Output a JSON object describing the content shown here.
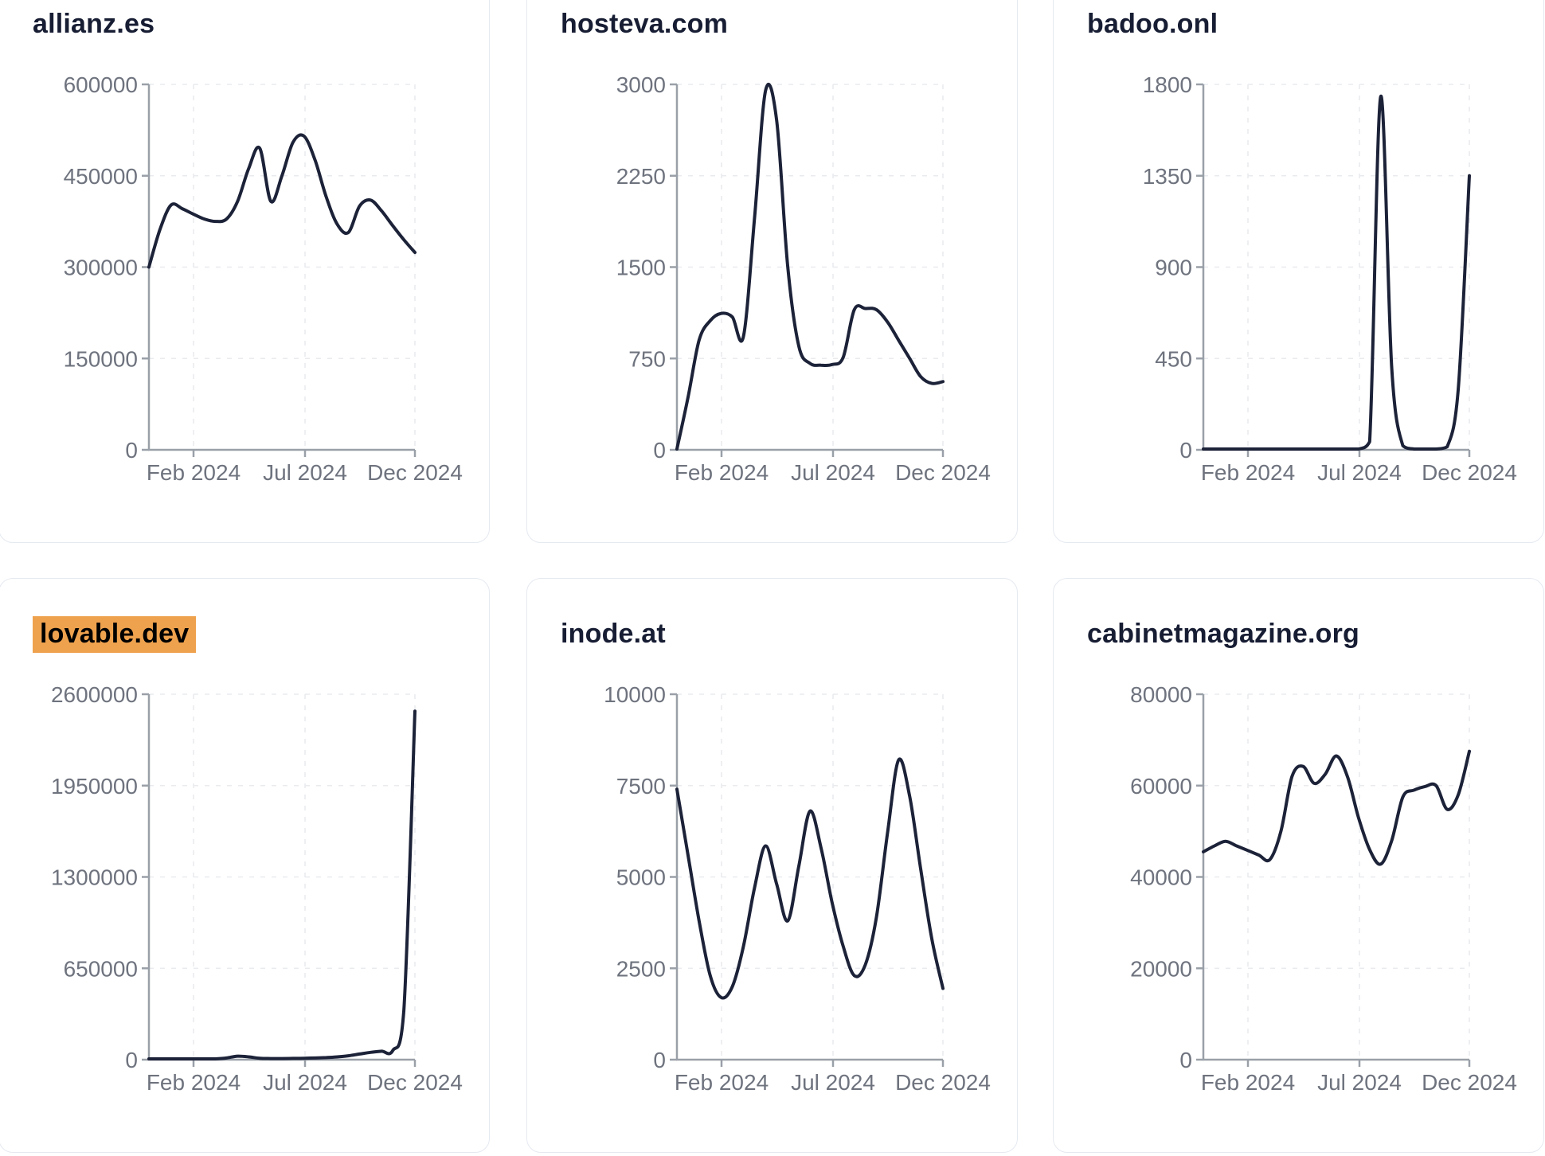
{
  "page": {
    "background": "#ffffff",
    "card_background": "#ffffff",
    "card_border": "#e5e9f0"
  },
  "colors": {
    "line": "#1c2238",
    "axis": "#9aa0a8",
    "grid": "#e9ebef",
    "tick_text": "#6e737e",
    "title_text": "#171d33",
    "highlight": "#efa24e",
    "highlight_text": "#000000"
  },
  "chart_data": [
    {
      "type": "line",
      "title": "allianz.es",
      "highlighted": false,
      "x_ticks": [
        "Feb 2024",
        "Jul 2024",
        "Dec 2024"
      ],
      "y_ticks": [
        0,
        150000,
        300000,
        450000,
        600000
      ],
      "y_max": 600000,
      "x_range": [
        "Dec 2023",
        "Dec 2024"
      ],
      "values": [
        300000,
        362000,
        402000,
        396000,
        387000,
        379000,
        375000,
        379000,
        408000,
        462000,
        495000,
        408000,
        450000,
        505000,
        515000,
        475000,
        415000,
        370000,
        357000,
        400000,
        410000,
        392000,
        368000,
        345000,
        324000
      ]
    },
    {
      "type": "line",
      "title": "hosteva.com",
      "highlighted": false,
      "x_ticks": [
        "Feb 2024",
        "Jul 2024",
        "Dec 2024"
      ],
      "y_ticks": [
        0,
        750,
        1500,
        2250,
        3000
      ],
      "y_max": 3000,
      "x_range": [
        "Dec 2023",
        "Dec 2024"
      ],
      "values": [
        0,
        430,
        900,
        1060,
        1120,
        1090,
        930,
        1900,
        2950,
        2700,
        1500,
        850,
        710,
        695,
        700,
        760,
        1150,
        1160,
        1150,
        1050,
        900,
        750,
        600,
        545,
        560
      ]
    },
    {
      "type": "line",
      "title": "badoo.onl",
      "highlighted": false,
      "x_ticks": [
        "Feb 2024",
        "Jul 2024",
        "Dec 2024"
      ],
      "y_ticks": [
        0,
        450,
        900,
        1350,
        1800
      ],
      "y_max": 1800,
      "x_range": [
        "Dec 2023",
        "Dec 2024"
      ],
      "values": [
        3,
        3,
        3,
        3,
        3,
        3,
        3,
        3,
        3,
        3,
        3,
        3,
        3,
        3,
        3,
        40,
        1740,
        400,
        20,
        3,
        3,
        3,
        15,
        300,
        1350
      ]
    },
    {
      "type": "line",
      "title": "lovable.dev",
      "highlighted": true,
      "x_ticks": [
        "Feb 2024",
        "Jul 2024",
        "Dec 2024"
      ],
      "y_ticks": [
        0,
        650000,
        1300000,
        1950000,
        2600000
      ],
      "y_max": 2600000,
      "x_range": [
        "Dec 2023",
        "Dec 2024"
      ],
      "values": [
        2000,
        2000,
        2500,
        3000,
        3500,
        4000,
        5000,
        12000,
        25000,
        20000,
        10000,
        8000,
        8000,
        9000,
        10000,
        12000,
        15000,
        20000,
        28000,
        40000,
        52000,
        60000,
        65000,
        350000,
        2480000
      ]
    },
    {
      "type": "line",
      "title": "inode.at",
      "highlighted": false,
      "x_ticks": [
        "Feb 2024",
        "Jul 2024",
        "Dec 2024"
      ],
      "y_ticks": [
        0,
        2500,
        5000,
        7500,
        10000
      ],
      "y_max": 10000,
      "x_range": [
        "Dec 2023",
        "Dec 2024"
      ],
      "values": [
        7400,
        5600,
        3800,
        2300,
        1700,
        2000,
        3100,
        4700,
        5850,
        4800,
        3800,
        5300,
        6800,
        5800,
        4300,
        3100,
        2300,
        2600,
        3900,
        6200,
        8200,
        7200,
        5200,
        3300,
        1950
      ]
    },
    {
      "type": "line",
      "title": "cabinetmagazine.org",
      "highlighted": false,
      "x_ticks": [
        "Feb 2024",
        "Jul 2024",
        "Dec 2024"
      ],
      "y_ticks": [
        0,
        20000,
        40000,
        60000,
        80000
      ],
      "y_max": 80000,
      "x_range": [
        "Dec 2023",
        "Dec 2024"
      ],
      "values": [
        45500,
        46800,
        47800,
        46800,
        45800,
        44800,
        43800,
        50000,
        62000,
        64200,
        60500,
        62500,
        66500,
        62000,
        53000,
        46000,
        42800,
        48000,
        57500,
        59000,
        59800,
        60000,
        54800,
        58000,
        67500
      ]
    }
  ]
}
